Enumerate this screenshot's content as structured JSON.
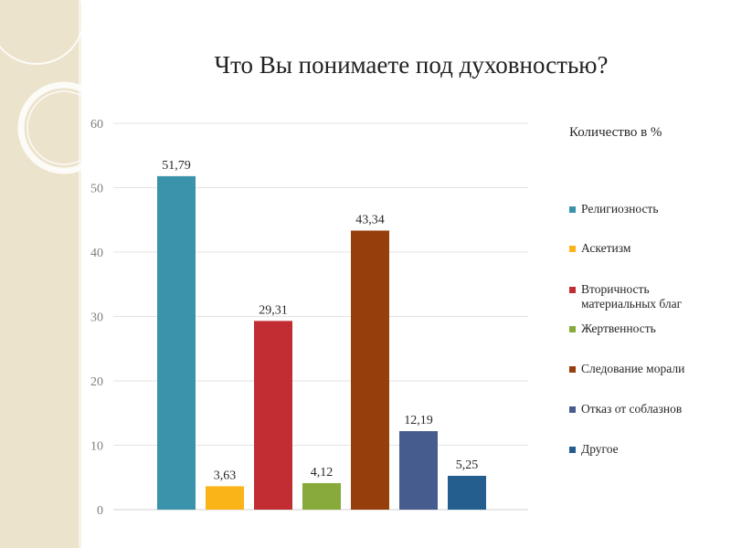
{
  "chart_data": {
    "type": "bar",
    "title": "Что Вы понимаете под духовностью?",
    "legend_title": "Количество в %",
    "categories": [
      "Религиозность",
      "Аскетизм",
      "Вторичность материальных благ",
      "Жертвенность",
      "Следование морали",
      "Отказ от соблазнов",
      "Другое"
    ],
    "values": [
      51.79,
      3.63,
      29.31,
      4.12,
      43.34,
      12.19,
      5.25
    ],
    "value_labels": [
      "51,79",
      "3,63",
      "29,31",
      "4,12",
      "43,34",
      "12,19",
      "5,25"
    ],
    "colors": [
      "#3b93ab",
      "#fbb418",
      "#c12d32",
      "#87aa3b",
      "#963f0c",
      "#465b8e",
      "#235e8e"
    ],
    "ylim": [
      0,
      60
    ],
    "yticks": [
      0,
      10,
      20,
      30,
      40,
      50,
      60
    ],
    "grid": true,
    "legend_position": "right"
  }
}
